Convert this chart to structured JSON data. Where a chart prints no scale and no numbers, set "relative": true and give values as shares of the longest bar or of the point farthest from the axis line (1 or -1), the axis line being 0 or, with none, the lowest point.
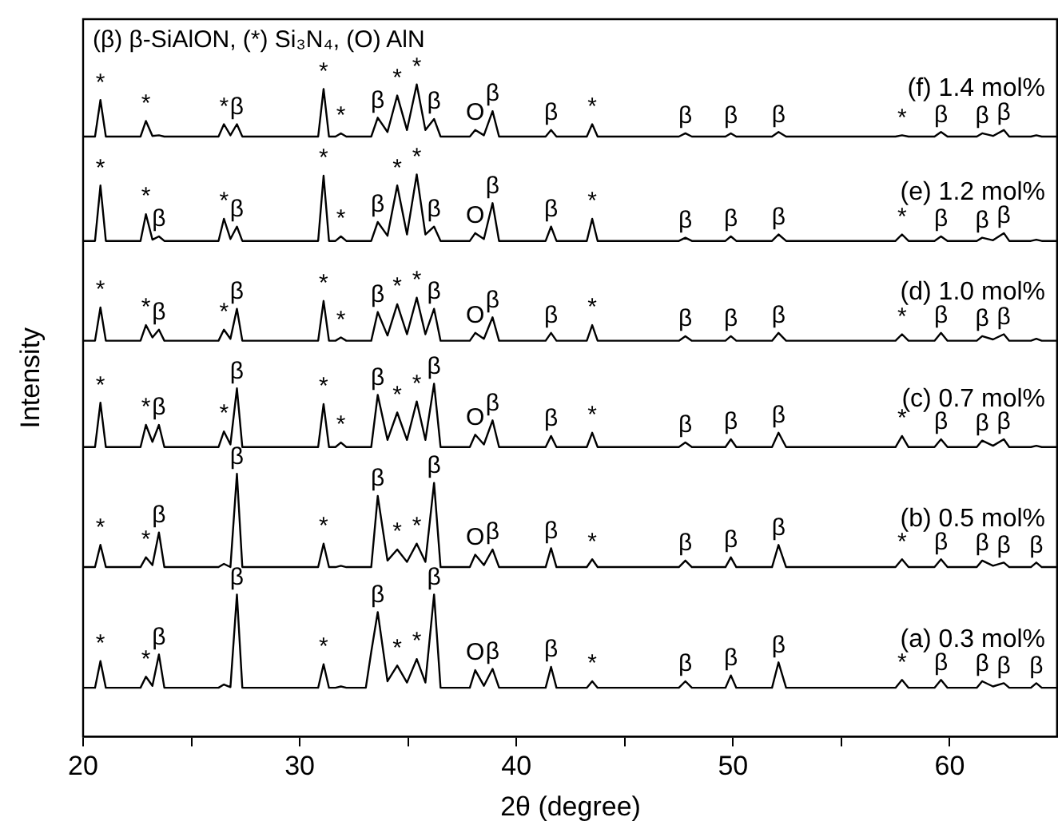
{
  "chart_data": {
    "type": "line",
    "relative": true,
    "xlabel": "2θ (degree)",
    "ylabel": "Intensity",
    "xlim": [
      20,
      65
    ],
    "xticks": [
      20,
      {
        "value": 25,
        "label": null
      },
      30,
      {
        "value": 35,
        "label": null
      },
      40,
      {
        "value": 45,
        "label": null
      },
      50,
      {
        "value": 55,
        "label": null
      },
      60
    ],
    "tick_labels": "x",
    "grid": false,
    "legend": false,
    "marker": "none",
    "line_style": "solid",
    "x": [
      20,
      20.55,
      20.8,
      21.05,
      22.65,
      22.9,
      23.2,
      23.5,
      23.75,
      26.25,
      26.5,
      26.8,
      27.1,
      27.35,
      30.85,
      31.1,
      31.35,
      31.65,
      31.9,
      32.15,
      33.05,
      33.3,
      33.6,
      34.05,
      34.5,
      34.95,
      35.4,
      35.8,
      36.2,
      36.5,
      37.85,
      38.1,
      38.5,
      38.9,
      39.2,
      41.35,
      41.6,
      41.85,
      43.25,
      43.5,
      43.75,
      47.5,
      47.8,
      48.1,
      49.65,
      49.9,
      50.15,
      51.8,
      52.1,
      52.45,
      57.5,
      57.8,
      58.1,
      59.3,
      59.6,
      59.9,
      61.25,
      61.5,
      62.0,
      62.5,
      62.75,
      63.75,
      64.0,
      64.25,
      65
    ],
    "series": [
      {
        "name": "(a) 0.3 mol%",
        "color": "#000000",
        "values": [
          0.075,
          0.075,
          0.116,
          0.075,
          0.075,
          0.092,
          0.078,
          0.126,
          0.075,
          0.075,
          0.08,
          0.076,
          0.218,
          0.075,
          0.075,
          0.111,
          0.075,
          0.075,
          0.077,
          0.075,
          0.075,
          0.13,
          0.191,
          0.085,
          0.109,
          0.083,
          0.119,
          0.083,
          0.218,
          0.075,
          0.075,
          0.102,
          0.078,
          0.104,
          0.075,
          0.075,
          0.107,
          0.075,
          0.075,
          0.085,
          0.075,
          0.075,
          0.085,
          0.075,
          0.075,
          0.094,
          0.075,
          0.075,
          0.114,
          0.075,
          0.075,
          0.087,
          0.075,
          0.075,
          0.087,
          0.075,
          0.075,
          0.085,
          0.077,
          0.082,
          0.075,
          0.075,
          0.082,
          0.075,
          0.075
        ]
      },
      {
        "name": "(b) 0.5 mol%",
        "color": "#000000",
        "values": [
          0.26,
          0.26,
          0.294,
          0.26,
          0.26,
          0.275,
          0.263,
          0.313,
          0.26,
          0.26,
          0.265,
          0.26,
          0.403,
          0.26,
          0.26,
          0.296,
          0.26,
          0.26,
          0.262,
          0.26,
          0.26,
          0.26,
          0.369,
          0.27,
          0.287,
          0.268,
          0.296,
          0.268,
          0.389,
          0.26,
          0.26,
          0.279,
          0.263,
          0.287,
          0.26,
          0.26,
          0.289,
          0.26,
          0.26,
          0.272,
          0.26,
          0.26,
          0.27,
          0.26,
          0.26,
          0.275,
          0.26,
          0.26,
          0.294,
          0.26,
          0.26,
          0.272,
          0.26,
          0.26,
          0.272,
          0.26,
          0.26,
          0.27,
          0.262,
          0.267,
          0.26,
          0.26,
          0.267,
          0.26,
          0.26
        ]
      },
      {
        "name": "(c) 0.7 mol%",
        "color": "#000000",
        "values": [
          0.444,
          0.444,
          0.512,
          0.444,
          0.444,
          0.478,
          0.452,
          0.478,
          0.444,
          0.444,
          0.468,
          0.448,
          0.534,
          0.444,
          0.444,
          0.51,
          0.444,
          0.444,
          0.451,
          0.444,
          0.444,
          0.444,
          0.524,
          0.455,
          0.497,
          0.455,
          0.514,
          0.455,
          0.541,
          0.444,
          0.444,
          0.463,
          0.448,
          0.485,
          0.444,
          0.444,
          0.461,
          0.444,
          0.444,
          0.466,
          0.444,
          0.444,
          0.451,
          0.444,
          0.444,
          0.456,
          0.444,
          0.444,
          0.466,
          0.444,
          0.444,
          0.461,
          0.444,
          0.444,
          0.456,
          0.444,
          0.444,
          0.454,
          0.446,
          0.456,
          0.444,
          0.444,
          0.446,
          0.444,
          0.444
        ]
      },
      {
        "name": "(d) 1.0 mol%",
        "color": "#000000",
        "values": [
          0.607,
          0.607,
          0.658,
          0.607,
          0.607,
          0.631,
          0.612,
          0.624,
          0.607,
          0.607,
          0.624,
          0.61,
          0.656,
          0.607,
          0.607,
          0.668,
          0.607,
          0.607,
          0.612,
          0.607,
          0.607,
          0.607,
          0.651,
          0.615,
          0.663,
          0.617,
          0.673,
          0.617,
          0.656,
          0.607,
          0.607,
          0.619,
          0.61,
          0.643,
          0.607,
          0.607,
          0.619,
          0.607,
          0.607,
          0.631,
          0.607,
          0.607,
          0.614,
          0.607,
          0.607,
          0.614,
          0.607,
          0.607,
          0.619,
          0.607,
          0.607,
          0.617,
          0.607,
          0.607,
          0.619,
          0.607,
          0.607,
          0.614,
          0.609,
          0.617,
          0.607,
          0.607,
          0.61,
          0.607,
          0.607
        ]
      },
      {
        "name": "(e) 1.2 mol%",
        "color": "#000000",
        "values": [
          0.76,
          0.76,
          0.845,
          0.76,
          0.76,
          0.801,
          0.762,
          0.767,
          0.76,
          0.76,
          0.794,
          0.763,
          0.782,
          0.76,
          0.76,
          0.86,
          0.76,
          0.76,
          0.767,
          0.76,
          0.76,
          0.76,
          0.789,
          0.768,
          0.845,
          0.77,
          0.862,
          0.77,
          0.782,
          0.76,
          0.76,
          0.772,
          0.763,
          0.818,
          0.76,
          0.76,
          0.782,
          0.76,
          0.76,
          0.794,
          0.76,
          0.76,
          0.765,
          0.76,
          0.76,
          0.767,
          0.76,
          0.76,
          0.77,
          0.76,
          0.76,
          0.77,
          0.76,
          0.76,
          0.767,
          0.76,
          0.76,
          0.765,
          0.761,
          0.772,
          0.76,
          0.76,
          0.762,
          0.76,
          0.76
        ]
      },
      {
        "name": "(f) 1.4 mol%",
        "color": "#000000",
        "values": [
          0.92,
          0.92,
          0.976,
          0.92,
          0.92,
          0.944,
          0.921,
          0.922,
          0.92,
          0.92,
          0.939,
          0.922,
          0.939,
          0.92,
          0.92,
          0.993,
          0.92,
          0.92,
          0.925,
          0.92,
          0.92,
          0.92,
          0.949,
          0.927,
          0.983,
          0.93,
          1.0,
          0.93,
          0.947,
          0.92,
          0.92,
          0.93,
          0.922,
          0.959,
          0.92,
          0.92,
          0.93,
          0.92,
          0.92,
          0.939,
          0.92,
          0.92,
          0.925,
          0.92,
          0.92,
          0.925,
          0.92,
          0.92,
          0.927,
          0.92,
          0.92,
          0.922,
          0.92,
          0.92,
          0.927,
          0.92,
          0.92,
          0.925,
          0.921,
          0.93,
          0.92,
          0.92,
          0.922,
          0.92,
          0.92
        ]
      }
    ],
    "annotations": [
      "(β) β-SiAlON, (*) Si₃N₄, (O) AlN",
      {
        "text": "*",
        "x": 20.8,
        "y": 0.116
      },
      {
        "text": "*",
        "x": 22.9,
        "y": 0.092
      },
      {
        "text": "β",
        "x": 23.5,
        "y": 0.126
      },
      {
        "text": "β",
        "x": 27.1,
        "y": 0.218
      },
      {
        "text": "*",
        "x": 31.1,
        "y": 0.111
      },
      {
        "text": "β",
        "x": 33.6,
        "y": 0.191
      },
      {
        "text": "*",
        "x": 34.5,
        "y": 0.109
      },
      {
        "text": "*",
        "x": 35.4,
        "y": 0.119
      },
      {
        "text": "β",
        "x": 36.2,
        "y": 0.218
      },
      {
        "text": "O",
        "x": 38.1,
        "y": 0.102
      },
      {
        "text": "β",
        "x": 38.9,
        "y": 0.104
      },
      {
        "text": "β",
        "x": 41.6,
        "y": 0.107
      },
      {
        "text": "*",
        "x": 43.5,
        "y": 0.085
      },
      {
        "text": "β",
        "x": 47.8,
        "y": 0.085
      },
      {
        "text": "β",
        "x": 49.9,
        "y": 0.094
      },
      {
        "text": "β",
        "x": 52.1,
        "y": 0.114
      },
      {
        "text": "*",
        "x": 57.8,
        "y": 0.087
      },
      {
        "text": "β",
        "x": 59.6,
        "y": 0.087
      },
      {
        "text": "β",
        "x": 61.5,
        "y": 0.085
      },
      {
        "text": "β",
        "x": 62.5,
        "y": 0.082
      },
      {
        "text": "β",
        "x": 64.0,
        "y": 0.082
      },
      {
        "text": "*",
        "x": 20.8,
        "y": 0.294
      },
      {
        "text": "*",
        "x": 22.9,
        "y": 0.275
      },
      {
        "text": "β",
        "x": 23.5,
        "y": 0.313
      },
      {
        "text": "β",
        "x": 27.1,
        "y": 0.403
      },
      {
        "text": "*",
        "x": 31.1,
        "y": 0.296
      },
      {
        "text": "β",
        "x": 33.6,
        "y": 0.369
      },
      {
        "text": "*",
        "x": 34.5,
        "y": 0.287
      },
      {
        "text": "*",
        "x": 35.4,
        "y": 0.296
      },
      {
        "text": "β",
        "x": 36.2,
        "y": 0.389
      },
      {
        "text": "O",
        "x": 38.1,
        "y": 0.279
      },
      {
        "text": "β",
        "x": 38.9,
        "y": 0.287
      },
      {
        "text": "β",
        "x": 41.6,
        "y": 0.289
      },
      {
        "text": "*",
        "x": 43.5,
        "y": 0.272
      },
      {
        "text": "β",
        "x": 47.8,
        "y": 0.27
      },
      {
        "text": "β",
        "x": 49.9,
        "y": 0.275
      },
      {
        "text": "β",
        "x": 52.1,
        "y": 0.294
      },
      {
        "text": "*",
        "x": 57.8,
        "y": 0.272
      },
      {
        "text": "β",
        "x": 59.6,
        "y": 0.272
      },
      {
        "text": "β",
        "x": 61.5,
        "y": 0.27
      },
      {
        "text": "β",
        "x": 62.5,
        "y": 0.267
      },
      {
        "text": "β",
        "x": 64.0,
        "y": 0.267
      },
      {
        "text": "*",
        "x": 20.8,
        "y": 0.512
      },
      {
        "text": "*",
        "x": 22.9,
        "y": 0.478
      },
      {
        "text": "β",
        "x": 23.5,
        "y": 0.478
      },
      {
        "text": "*",
        "x": 26.5,
        "y": 0.468
      },
      {
        "text": "β",
        "x": 27.1,
        "y": 0.534
      },
      {
        "text": "*",
        "x": 31.1,
        "y": 0.51
      },
      {
        "text": "*",
        "x": 31.9,
        "y": 0.451
      },
      {
        "text": "β",
        "x": 33.6,
        "y": 0.524
      },
      {
        "text": "*",
        "x": 34.5,
        "y": 0.497
      },
      {
        "text": "*",
        "x": 35.4,
        "y": 0.514
      },
      {
        "text": "β",
        "x": 36.2,
        "y": 0.541
      },
      {
        "text": "O",
        "x": 38.1,
        "y": 0.463
      },
      {
        "text": "β",
        "x": 38.9,
        "y": 0.485
      },
      {
        "text": "β",
        "x": 41.6,
        "y": 0.461
      },
      {
        "text": "*",
        "x": 43.5,
        "y": 0.466
      },
      {
        "text": "β",
        "x": 47.8,
        "y": 0.451
      },
      {
        "text": "β",
        "x": 49.9,
        "y": 0.456
      },
      {
        "text": "β",
        "x": 52.1,
        "y": 0.466
      },
      {
        "text": "*",
        "x": 57.8,
        "y": 0.461
      },
      {
        "text": "β",
        "x": 59.6,
        "y": 0.456
      },
      {
        "text": "β",
        "x": 61.5,
        "y": 0.454
      },
      {
        "text": "β",
        "x": 62.5,
        "y": 0.456
      },
      {
        "text": "*",
        "x": 20.8,
        "y": 0.658
      },
      {
        "text": "*",
        "x": 22.9,
        "y": 0.631
      },
      {
        "text": "β",
        "x": 23.5,
        "y": 0.624
      },
      {
        "text": "*",
        "x": 26.5,
        "y": 0.624
      },
      {
        "text": "β",
        "x": 27.1,
        "y": 0.656
      },
      {
        "text": "*",
        "x": 31.1,
        "y": 0.668
      },
      {
        "text": "*",
        "x": 31.9,
        "y": 0.612
      },
      {
        "text": "β",
        "x": 33.6,
        "y": 0.651
      },
      {
        "text": "*",
        "x": 34.5,
        "y": 0.663
      },
      {
        "text": "*",
        "x": 35.4,
        "y": 0.673
      },
      {
        "text": "β",
        "x": 36.2,
        "y": 0.656
      },
      {
        "text": "O",
        "x": 38.1,
        "y": 0.619
      },
      {
        "text": "β",
        "x": 38.9,
        "y": 0.643
      },
      {
        "text": "β",
        "x": 41.6,
        "y": 0.619
      },
      {
        "text": "*",
        "x": 43.5,
        "y": 0.631
      },
      {
        "text": "β",
        "x": 47.8,
        "y": 0.614
      },
      {
        "text": "β",
        "x": 49.9,
        "y": 0.614
      },
      {
        "text": "β",
        "x": 52.1,
        "y": 0.619
      },
      {
        "text": "*",
        "x": 57.8,
        "y": 0.617
      },
      {
        "text": "β",
        "x": 59.6,
        "y": 0.619
      },
      {
        "text": "β",
        "x": 61.5,
        "y": 0.614
      },
      {
        "text": "β",
        "x": 62.5,
        "y": 0.617
      },
      {
        "text": "*",
        "x": 20.8,
        "y": 0.845
      },
      {
        "text": "*",
        "x": 22.9,
        "y": 0.801
      },
      {
        "text": "β",
        "x": 23.5,
        "y": 0.767
      },
      {
        "text": "*",
        "x": 26.5,
        "y": 0.794
      },
      {
        "text": "β",
        "x": 27.1,
        "y": 0.782
      },
      {
        "text": "*",
        "x": 31.1,
        "y": 0.86
      },
      {
        "text": "*",
        "x": 31.9,
        "y": 0.767
      },
      {
        "text": "β",
        "x": 33.6,
        "y": 0.789
      },
      {
        "text": "*",
        "x": 34.5,
        "y": 0.845
      },
      {
        "text": "*",
        "x": 35.4,
        "y": 0.862
      },
      {
        "text": "β",
        "x": 36.2,
        "y": 0.782
      },
      {
        "text": "O",
        "x": 38.1,
        "y": 0.772
      },
      {
        "text": "β",
        "x": 38.9,
        "y": 0.818
      },
      {
        "text": "β",
        "x": 41.6,
        "y": 0.782
      },
      {
        "text": "*",
        "x": 43.5,
        "y": 0.794
      },
      {
        "text": "β",
        "x": 47.8,
        "y": 0.765
      },
      {
        "text": "β",
        "x": 49.9,
        "y": 0.767
      },
      {
        "text": "β",
        "x": 52.1,
        "y": 0.77
      },
      {
        "text": "*",
        "x": 57.8,
        "y": 0.77
      },
      {
        "text": "β",
        "x": 59.6,
        "y": 0.767
      },
      {
        "text": "β",
        "x": 61.5,
        "y": 0.765
      },
      {
        "text": "β",
        "x": 62.5,
        "y": 0.772
      },
      {
        "text": "*",
        "x": 20.8,
        "y": 0.976
      },
      {
        "text": "*",
        "x": 22.9,
        "y": 0.944
      },
      {
        "text": "*",
        "x": 26.5,
        "y": 0.939
      },
      {
        "text": "β",
        "x": 27.1,
        "y": 0.939
      },
      {
        "text": "*",
        "x": 31.1,
        "y": 0.993
      },
      {
        "text": "*",
        "x": 31.9,
        "y": 0.925
      },
      {
        "text": "β",
        "x": 33.6,
        "y": 0.949
      },
      {
        "text": "*",
        "x": 34.5,
        "y": 0.983
      },
      {
        "text": "*",
        "x": 35.4,
        "y": 1.0
      },
      {
        "text": "β",
        "x": 36.2,
        "y": 0.947
      },
      {
        "text": "O",
        "x": 38.1,
        "y": 0.93
      },
      {
        "text": "β",
        "x": 38.9,
        "y": 0.959
      },
      {
        "text": "β",
        "x": 41.6,
        "y": 0.93
      },
      {
        "text": "*",
        "x": 43.5,
        "y": 0.939
      },
      {
        "text": "β",
        "x": 47.8,
        "y": 0.925
      },
      {
        "text": "β",
        "x": 49.9,
        "y": 0.925
      },
      {
        "text": "β",
        "x": 52.1,
        "y": 0.927
      },
      {
        "text": "*",
        "x": 57.8,
        "y": 0.922
      },
      {
        "text": "β",
        "x": 59.6,
        "y": 0.927
      },
      {
        "text": "β",
        "x": 61.5,
        "y": 0.925
      },
      {
        "text": "β",
        "x": 62.5,
        "y": 0.93
      }
    ]
  }
}
